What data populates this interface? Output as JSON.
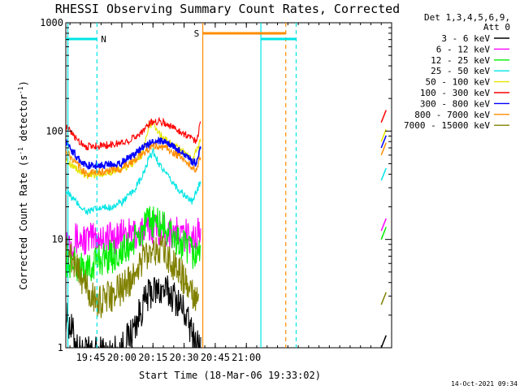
{
  "chart_data": {
    "type": "line",
    "title": "RHESSI Observing Summary Count Rates, Corrected",
    "xlabel": "Start Time (18-Mar-06 19:33:02)",
    "ylabel_main": "Corrected Count Rate (s",
    "ylabel_sup1": "-1",
    "ylabel_mid": " detector",
    "ylabel_sup2": "-1",
    "ylabel_end": ")",
    "y_scale": "log",
    "ylim": [
      1,
      1000
    ],
    "x_range_minutes": [
      "19:33",
      "22:10"
    ],
    "x_ticks": [
      "19:45",
      "20:00",
      "20:15",
      "20:30",
      "20:45",
      "21:00"
    ],
    "y_ticks": [
      "1",
      "10",
      "100",
      "1000"
    ],
    "legend_header": [
      "Det 1,3,4,5,6,9,",
      "Att 0"
    ],
    "footer": "14-Oct-2021 09:34",
    "grid": false,
    "legend_position": "right",
    "annotations": [
      {
        "text": "N",
        "color": "#00e5e5"
      },
      {
        "text": "S",
        "color": "#ff8c00"
      }
    ],
    "series": [
      {
        "name": "3 - 6 keV",
        "color": "#000000",
        "points": [
          [
            "19:33",
            2
          ],
          [
            "19:40",
            0.9
          ],
          [
            "19:55",
            0.9
          ],
          [
            "20:00",
            1
          ],
          [
            "20:05",
            1.4
          ],
          [
            "20:10",
            2.4
          ],
          [
            "20:14",
            3.3
          ],
          [
            "20:20",
            3.4
          ],
          [
            "20:25",
            3
          ],
          [
            "20:30",
            2.2
          ],
          [
            "20:34",
            1.3
          ],
          [
            "20:38",
            1
          ]
        ]
      },
      {
        "name": "6 - 12 keV",
        "color": "#ff00ff",
        "points": [
          [
            "19:33",
            10
          ],
          [
            "19:45",
            10
          ],
          [
            "19:46",
            10.5
          ],
          [
            "19:55",
            10.5
          ],
          [
            "20:00",
            10.7
          ],
          [
            "20:05",
            11
          ],
          [
            "20:10",
            12
          ],
          [
            "20:14",
            13
          ],
          [
            "20:20",
            12.5
          ],
          [
            "20:25",
            11.5
          ],
          [
            "20:30",
            10.8
          ],
          [
            "20:36",
            10.5
          ],
          [
            "20:38",
            12
          ]
        ]
      },
      {
        "name": "12 - 25 keV",
        "color": "#00ee00",
        "points": [
          [
            "19:33",
            6.5
          ],
          [
            "19:40",
            5.5
          ],
          [
            "19:45",
            5
          ],
          [
            "19:47",
            6.5
          ],
          [
            "19:55",
            7
          ],
          [
            "20:00",
            7.5
          ],
          [
            "20:05",
            9
          ],
          [
            "20:10",
            12
          ],
          [
            "20:14",
            15
          ],
          [
            "20:18",
            14
          ],
          [
            "20:22",
            12
          ],
          [
            "20:28",
            9
          ],
          [
            "20:34",
            7.5
          ],
          [
            "20:37",
            7
          ],
          [
            "20:38",
            10
          ]
        ]
      },
      {
        "name": "25 - 50 keV",
        "color": "#00e5e5",
        "points": [
          [
            "19:33",
            28
          ],
          [
            "19:38",
            22
          ],
          [
            "19:43",
            18
          ],
          [
            "19:48",
            19
          ],
          [
            "19:55",
            20
          ],
          [
            "20:00",
            22
          ],
          [
            "20:05",
            27
          ],
          [
            "20:10",
            38
          ],
          [
            "20:13",
            55
          ],
          [
            "20:15",
            65
          ],
          [
            "20:18",
            50
          ],
          [
            "20:22",
            38
          ],
          [
            "20:28",
            28
          ],
          [
            "20:34",
            22
          ],
          [
            "20:38",
            35
          ]
        ]
      },
      {
        "name": "50 - 100 keV",
        "color": "#e5e500",
        "points": [
          [
            "19:33",
            55
          ],
          [
            "19:38",
            45
          ],
          [
            "19:43",
            38
          ],
          [
            "19:48",
            40
          ],
          [
            "19:55",
            42
          ],
          [
            "20:00",
            44
          ],
          [
            "20:05",
            50
          ],
          [
            "20:10",
            62
          ],
          [
            "20:13",
            110
          ],
          [
            "20:15",
            120
          ],
          [
            "20:18",
            95
          ],
          [
            "20:22",
            80
          ],
          [
            "20:28",
            68
          ],
          [
            "20:34",
            55
          ],
          [
            "20:38",
            80
          ]
        ]
      },
      {
        "name": "100 - 300 keV",
        "color": "#ff0000",
        "points": [
          [
            "19:33",
            110
          ],
          [
            "19:38",
            85
          ],
          [
            "19:43",
            72
          ],
          [
            "19:48",
            73
          ],
          [
            "19:55",
            75
          ],
          [
            "20:00",
            78
          ],
          [
            "20:05",
            85
          ],
          [
            "20:10",
            100
          ],
          [
            "20:14",
            120
          ],
          [
            "20:18",
            125
          ],
          [
            "20:22",
            115
          ],
          [
            "20:28",
            100
          ],
          [
            "20:34",
            85
          ],
          [
            "20:36",
            82
          ],
          [
            "20:38",
            120
          ]
        ]
      },
      {
        "name": "300 - 800 keV",
        "color": "#0000ff",
        "points": [
          [
            "19:33",
            80
          ],
          [
            "19:38",
            58
          ],
          [
            "19:43",
            48
          ],
          [
            "19:48",
            48
          ],
          [
            "19:55",
            49
          ],
          [
            "20:00",
            51
          ],
          [
            "20:05",
            60
          ],
          [
            "20:10",
            70
          ],
          [
            "20:14",
            78
          ],
          [
            "20:18",
            82
          ],
          [
            "20:22",
            78
          ],
          [
            "20:28",
            65
          ],
          [
            "20:34",
            52
          ],
          [
            "20:36",
            50
          ],
          [
            "20:38",
            70
          ]
        ]
      },
      {
        "name": "800 - 7000 keV",
        "color": "#ff8c00",
        "points": [
          [
            "19:33",
            65
          ],
          [
            "19:38",
            50
          ],
          [
            "19:43",
            40
          ],
          [
            "19:48",
            42
          ],
          [
            "19:55",
            43
          ],
          [
            "20:00",
            45
          ],
          [
            "20:05",
            52
          ],
          [
            "20:10",
            62
          ],
          [
            "20:14",
            70
          ],
          [
            "20:18",
            73
          ],
          [
            "20:22",
            68
          ],
          [
            "20:28",
            58
          ],
          [
            "20:34",
            46
          ],
          [
            "20:36",
            44
          ],
          [
            "20:38",
            60
          ]
        ]
      },
      {
        "name": "7000 - 15000 keV",
        "color": "#808000",
        "points": [
          [
            "19:33",
            8.5
          ],
          [
            "19:38",
            6
          ],
          [
            "19:43",
            3.5
          ],
          [
            "19:48",
            2.6
          ],
          [
            "19:55",
            3
          ],
          [
            "20:00",
            3.5
          ],
          [
            "20:05",
            4.5
          ],
          [
            "20:10",
            6.5
          ],
          [
            "20:14",
            8.5
          ],
          [
            "20:18",
            8
          ],
          [
            "20:22",
            7
          ],
          [
            "20:28",
            5
          ],
          [
            "20:34",
            3
          ],
          [
            "20:37",
            2.5
          ]
        ]
      }
    ]
  }
}
